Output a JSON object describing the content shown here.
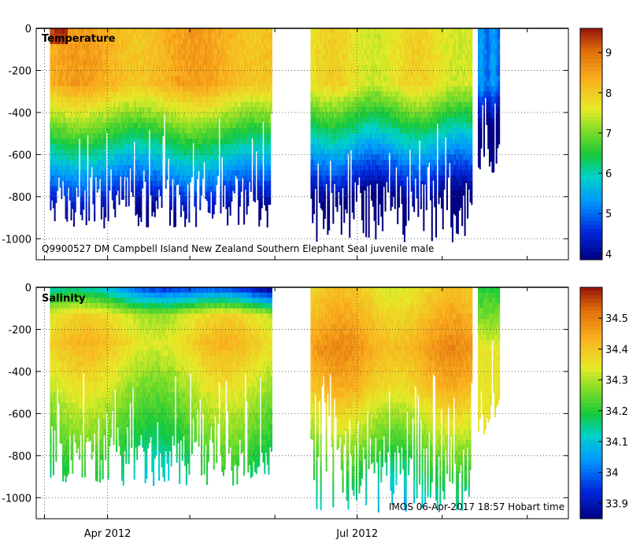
{
  "chart_data": [
    {
      "type": "heatmap",
      "title": "Temperature",
      "annotation": "Q9900527 DM Campbell Island New Zealand Southern Elephant Seal juvenile male",
      "y_ticks": [
        "0",
        "-200",
        "-400",
        "-600",
        "-800",
        "-1000"
      ],
      "y_tick_values": [
        0,
        -200,
        -400,
        -600,
        -800,
        -1000
      ],
      "ylim": [
        -1100,
        0
      ],
      "x_ticks": [
        "Apr 2012",
        "Jul 2012"
      ],
      "x_tick_dates": [
        "2012-04-01",
        "2012-07-01"
      ],
      "xlim": [
        "2012-03-06",
        "2012-09-16"
      ],
      "colorbar": {
        "min": 3.85,
        "max": 9.6,
        "ticks": [
          "4",
          "5",
          "6",
          "7",
          "8",
          "9"
        ],
        "tick_values": [
          4,
          5,
          6,
          7,
          8,
          9
        ]
      },
      "segments": [
        {
          "start": "2012-03-11",
          "end": "2012-05-31",
          "typical_max_depth": -700,
          "deepest": -950
        },
        {
          "start": "2012-06-14",
          "end": "2012-08-12",
          "typical_max_depth": -700,
          "deepest": -1020
        },
        {
          "start": "2012-08-14",
          "end": "2012-08-22",
          "typical_max_depth": -550,
          "deepest": -700
        }
      ],
      "surface_value": 8.6,
      "deep_value": 5.0
    },
    {
      "type": "heatmap",
      "title": "Salinity",
      "annotation": "IMOS 06-Apr-2017 18:57 Hobart time",
      "y_ticks": [
        "0",
        "-200",
        "-400",
        "-600",
        "-800",
        "-1000"
      ],
      "y_tick_values": [
        0,
        -200,
        -400,
        -600,
        -800,
        -1000
      ],
      "ylim": [
        -1100,
        0
      ],
      "x_ticks": [
        "Apr 2012",
        "Jul 2012"
      ],
      "x_tick_dates": [
        "2012-04-01",
        "2012-07-01"
      ],
      "xlim": [
        "2012-03-06",
        "2012-09-16"
      ],
      "colorbar": {
        "min": 33.85,
        "max": 34.6,
        "ticks": [
          "33.9",
          "34",
          "34.1",
          "34.2",
          "34.3",
          "34.4",
          "34.5"
        ],
        "tick_values": [
          33.9,
          34.0,
          34.1,
          34.2,
          34.3,
          34.4,
          34.5
        ]
      },
      "segments": [
        {
          "start": "2012-03-11",
          "end": "2012-05-31",
          "typical_max_depth": -700,
          "deepest": -950
        },
        {
          "start": "2012-06-14",
          "end": "2012-08-12",
          "typical_max_depth": -700,
          "deepest": -1070
        },
        {
          "start": "2012-08-14",
          "end": "2012-08-22",
          "typical_max_depth": -500,
          "deepest": -700
        }
      ],
      "surface_value": 34.05,
      "deep_value": 34.15
    }
  ]
}
